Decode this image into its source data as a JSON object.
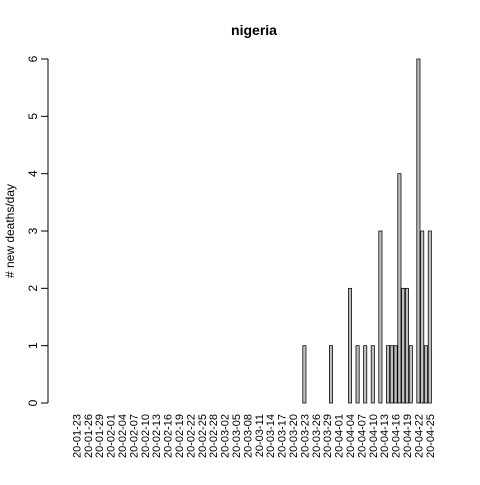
{
  "chart_data": {
    "type": "bar",
    "title": "nigeria",
    "xlabel": "",
    "ylabel": "# new deaths/day",
    "ylim": [
      0,
      6
    ],
    "yticks": [
      0,
      1,
      2,
      3,
      4,
      5,
      6
    ],
    "grid": false,
    "bar_fill": "#bebebe",
    "bar_stroke": "#000000",
    "xtick_labels": [
      "20-01-23",
      "20-01-26",
      "20-01-29",
      "20-02-01",
      "20-02-04",
      "20-02-07",
      "20-02-10",
      "20-02-13",
      "20-02-16",
      "20-02-19",
      "20-02-22",
      "20-02-25",
      "20-02-28",
      "20-03-02",
      "20-03-05",
      "20-03-08",
      "20-03-11",
      "20-03-14",
      "20-03-17",
      "20-03-20",
      "20-03-23",
      "20-03-26",
      "20-03-29",
      "20-04-01",
      "20-04-04",
      "20-04-07",
      "20-04-10",
      "20-04-13",
      "20-04-16",
      "20-04-19",
      "20-04-22",
      "20-04-25"
    ],
    "categories": [
      "20-01-23",
      "20-01-24",
      "20-01-25",
      "20-01-26",
      "20-01-27",
      "20-01-28",
      "20-01-29",
      "20-01-30",
      "20-01-31",
      "20-02-01",
      "20-02-02",
      "20-02-03",
      "20-02-04",
      "20-02-05",
      "20-02-06",
      "20-02-07",
      "20-02-08",
      "20-02-09",
      "20-02-10",
      "20-02-11",
      "20-02-12",
      "20-02-13",
      "20-02-14",
      "20-02-15",
      "20-02-16",
      "20-02-17",
      "20-02-18",
      "20-02-19",
      "20-02-20",
      "20-02-21",
      "20-02-22",
      "20-02-23",
      "20-02-24",
      "20-02-25",
      "20-02-26",
      "20-02-27",
      "20-02-28",
      "20-02-29",
      "20-03-01",
      "20-03-02",
      "20-03-03",
      "20-03-04",
      "20-03-05",
      "20-03-06",
      "20-03-07",
      "20-03-08",
      "20-03-09",
      "20-03-10",
      "20-03-11",
      "20-03-12",
      "20-03-13",
      "20-03-14",
      "20-03-15",
      "20-03-16",
      "20-03-17",
      "20-03-18",
      "20-03-19",
      "20-03-20",
      "20-03-21",
      "20-03-22",
      "20-03-23",
      "20-03-24",
      "20-03-25",
      "20-03-26",
      "20-03-27",
      "20-03-28",
      "20-03-29",
      "20-03-30",
      "20-03-31",
      "20-04-01",
      "20-04-02",
      "20-04-03",
      "20-04-04",
      "20-04-05",
      "20-04-06",
      "20-04-07",
      "20-04-08",
      "20-04-09",
      "20-04-10",
      "20-04-11",
      "20-04-12",
      "20-04-13",
      "20-04-14",
      "20-04-15",
      "20-04-16",
      "20-04-17",
      "20-04-18",
      "20-04-19",
      "20-04-20",
      "20-04-21",
      "20-04-22",
      "20-04-23",
      "20-04-24",
      "20-04-25"
    ],
    "values": [
      0,
      0,
      0,
      0,
      0,
      0,
      0,
      0,
      0,
      0,
      0,
      0,
      0,
      0,
      0,
      0,
      0,
      0,
      0,
      0,
      0,
      0,
      0,
      0,
      0,
      0,
      0,
      0,
      0,
      0,
      0,
      0,
      0,
      0,
      0,
      0,
      0,
      0,
      0,
      0,
      0,
      0,
      0,
      0,
      0,
      0,
      0,
      0,
      0,
      0,
      0,
      0,
      0,
      0,
      0,
      0,
      0,
      0,
      0,
      0,
      1,
      0,
      0,
      0,
      0,
      0,
      0,
      1,
      0,
      0,
      0,
      0,
      2,
      0,
      1,
      0,
      1,
      0,
      1,
      0,
      3,
      0,
      1,
      1,
      1,
      4,
      2,
      2,
      1,
      0,
      6,
      3,
      1,
      3
    ]
  }
}
